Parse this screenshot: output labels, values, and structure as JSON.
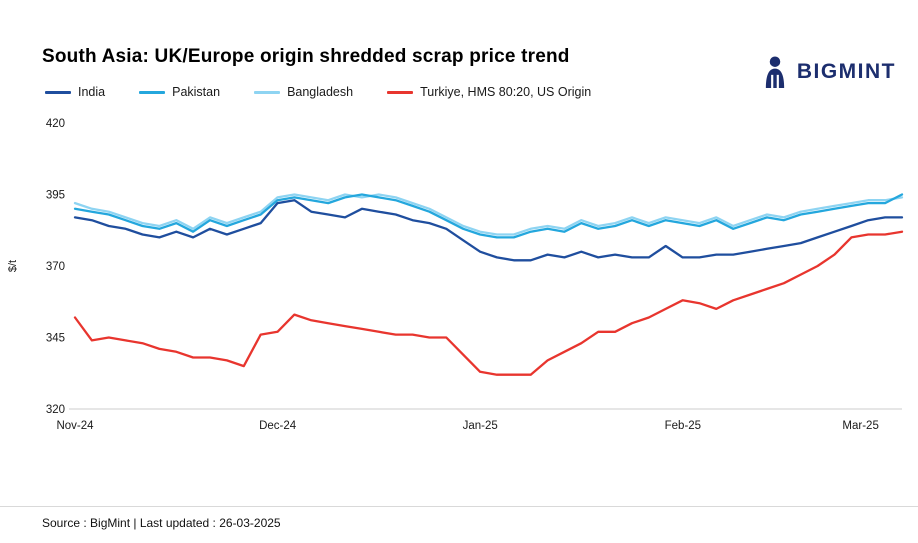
{
  "header": {
    "logo_text": "BIGMINT",
    "title": "South Asia: UK/Europe origin shredded scrap price trend"
  },
  "footer": {
    "text": "Source : BigMint | Last updated : 26-03-2025"
  },
  "colors": {
    "brand_navy": "#1c2e6e",
    "axis_line": "#cccccc"
  },
  "chart_data": {
    "type": "line",
    "title": "South Asia: UK/Europe origin shredded scrap price trend",
    "xlabel": "",
    "ylabel": "$/t",
    "ylim": [
      320,
      420
    ],
    "y_ticks": [
      320,
      345,
      370,
      395,
      420
    ],
    "x_ticks": [
      {
        "label": "Nov-24",
        "t": 0.0
      },
      {
        "label": "Dec-24",
        "t": 0.245
      },
      {
        "label": "Jan-25",
        "t": 0.49
      },
      {
        "label": "Feb-25",
        "t": 0.735
      },
      {
        "label": "Mar-25",
        "t": 0.95
      }
    ],
    "grid": false,
    "legend_position": "top-left",
    "series": [
      {
        "name": "India",
        "color": "#1f4e9e",
        "values": [
          387,
          386,
          384,
          383,
          381,
          380,
          382,
          380,
          383,
          381,
          383,
          385,
          392,
          393,
          389,
          388,
          387,
          390,
          389,
          388,
          386,
          385,
          383,
          379,
          375,
          373,
          372,
          372,
          374,
          373,
          375,
          373,
          374,
          373,
          373,
          377,
          373,
          373,
          374,
          374,
          375,
          376,
          377,
          378,
          380,
          382,
          384,
          386,
          387,
          387
        ]
      },
      {
        "name": "Pakistan",
        "color": "#24a7dd",
        "values": [
          390,
          389,
          388,
          386,
          384,
          383,
          385,
          382,
          386,
          384,
          386,
          388,
          393,
          394,
          393,
          392,
          394,
          395,
          394,
          393,
          391,
          389,
          386,
          383,
          381,
          380,
          380,
          382,
          383,
          382,
          385,
          383,
          384,
          386,
          384,
          386,
          385,
          384,
          386,
          383,
          385,
          387,
          386,
          388,
          389,
          390,
          391,
          392,
          392,
          395
        ]
      },
      {
        "name": "Bangladesh",
        "color": "#8ed4f2",
        "values": [
          392,
          390,
          389,
          387,
          385,
          384,
          386,
          383,
          387,
          385,
          387,
          389,
          394,
          395,
          394,
          393,
          395,
          394,
          395,
          394,
          392,
          390,
          387,
          384,
          382,
          381,
          381,
          383,
          384,
          383,
          386,
          384,
          385,
          387,
          385,
          387,
          386,
          385,
          387,
          384,
          386,
          388,
          387,
          389,
          390,
          391,
          392,
          393,
          393,
          394
        ]
      },
      {
        "name": "Turkiye, HMS 80:20, US Origin",
        "color": "#e8352e",
        "values": [
          352,
          344,
          345,
          344,
          343,
          341,
          340,
          338,
          338,
          337,
          335,
          346,
          347,
          353,
          351,
          350,
          349,
          348,
          347,
          346,
          346,
          345,
          345,
          339,
          333,
          332,
          332,
          332,
          337,
          340,
          343,
          347,
          347,
          350,
          352,
          355,
          358,
          357,
          355,
          358,
          360,
          362,
          364,
          367,
          370,
          374,
          380,
          381,
          381,
          382
        ]
      }
    ]
  }
}
